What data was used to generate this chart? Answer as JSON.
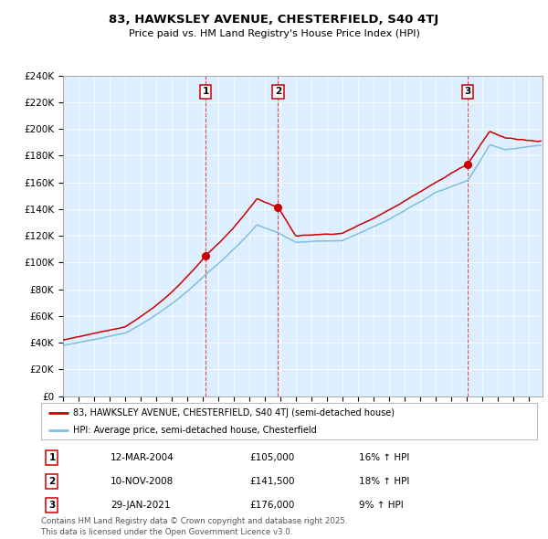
{
  "title1": "83, HAWKSLEY AVENUE, CHESTERFIELD, S40 4TJ",
  "title2": "Price paid vs. HM Land Registry's House Price Index (HPI)",
  "ylim": [
    0,
    240000
  ],
  "yticks": [
    0,
    20000,
    40000,
    60000,
    80000,
    100000,
    120000,
    140000,
    160000,
    180000,
    200000,
    220000,
    240000
  ],
  "ytick_labels": [
    "£0",
    "£20K",
    "£40K",
    "£60K",
    "£80K",
    "£100K",
    "£120K",
    "£140K",
    "£160K",
    "£180K",
    "£200K",
    "£220K",
    "£240K"
  ],
  "xlim_start": 1995.0,
  "xlim_end": 2025.9,
  "red_line_label": "83, HAWKSLEY AVENUE, CHESTERFIELD, S40 4TJ (semi-detached house)",
  "blue_line_label": "HPI: Average price, semi-detached house, Chesterfield",
  "transactions": [
    {
      "num": 1,
      "date": "12-MAR-2004",
      "year": 2004.19,
      "price": 105000,
      "hpi_pct": "16%",
      "direction": "↑"
    },
    {
      "num": 2,
      "date": "10-NOV-2008",
      "year": 2008.86,
      "price": 141500,
      "hpi_pct": "18%",
      "direction": "↑"
    },
    {
      "num": 3,
      "date": "29-JAN-2021",
      "year": 2021.07,
      "price": 176000,
      "hpi_pct": "9%",
      "direction": "↑"
    }
  ],
  "footer": "Contains HM Land Registry data © Crown copyright and database right 2025.\nThis data is licensed under the Open Government Licence v3.0.",
  "red_color": "#cc0000",
  "blue_color": "#7fbfdf",
  "bg_color": "#ddeeff",
  "plot_bg": "#ffffff"
}
